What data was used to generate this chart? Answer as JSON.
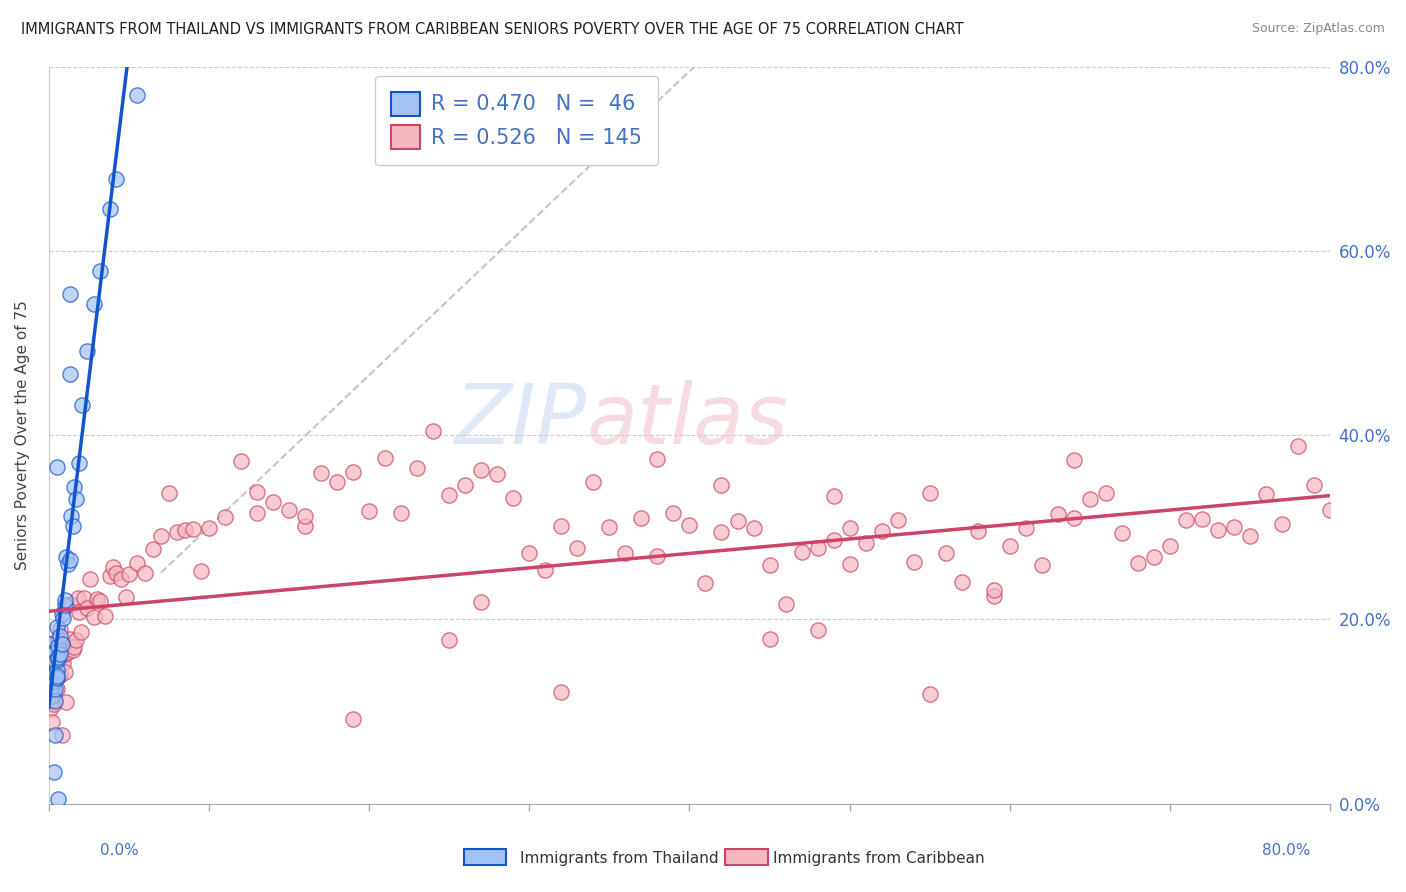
{
  "title": "IMMIGRANTS FROM THAILAND VS IMMIGRANTS FROM CARIBBEAN SENIORS POVERTY OVER THE AGE OF 75 CORRELATION CHART",
  "source": "Source: ZipAtlas.com",
  "ylabel": "Seniors Poverty Over the Age of 75",
  "xlabel_thailand": "Immigrants from Thailand",
  "xlabel_caribbean": "Immigrants from Caribbean",
  "legend_thailand_R": "0.470",
  "legend_thailand_N": "46",
  "legend_caribbean_R": "0.526",
  "legend_caribbean_N": "145",
  "color_thailand": "#a4c2f4",
  "color_caribbean": "#f4b8c1",
  "color_regression_thailand": "#1155cc",
  "color_regression_caribbean": "#cc4466",
  "color_ref_line": "#bbbbbb",
  "xlim": [
    0.0,
    0.8
  ],
  "ylim": [
    0.0,
    0.8
  ],
  "yticks_right": [
    0.0,
    0.2,
    0.4,
    0.6,
    0.8
  ],
  "background_color": "#ffffff",
  "watermark_zip": "ZIP",
  "watermark_atlas": "atlas",
  "thai_x": [
    0.001,
    0.001,
    0.001,
    0.001,
    0.002,
    0.002,
    0.002,
    0.002,
    0.002,
    0.003,
    0.003,
    0.003,
    0.003,
    0.004,
    0.004,
    0.004,
    0.004,
    0.005,
    0.005,
    0.005,
    0.005,
    0.006,
    0.006,
    0.006,
    0.007,
    0.007,
    0.008,
    0.008,
    0.009,
    0.01,
    0.01,
    0.011,
    0.012,
    0.013,
    0.014,
    0.015,
    0.016,
    0.017,
    0.019,
    0.021,
    0.024,
    0.028,
    0.032,
    0.038,
    0.042,
    0.055
  ],
  "thai_y": [
    0.12,
    0.13,
    0.14,
    0.15,
    0.12,
    0.13,
    0.14,
    0.15,
    0.16,
    0.13,
    0.14,
    0.15,
    0.16,
    0.14,
    0.15,
    0.16,
    0.17,
    0.14,
    0.15,
    0.16,
    0.17,
    0.16,
    0.17,
    0.18,
    0.17,
    0.18,
    0.19,
    0.2,
    0.21,
    0.22,
    0.23,
    0.24,
    0.26,
    0.28,
    0.3,
    0.32,
    0.34,
    0.36,
    0.39,
    0.43,
    0.48,
    0.54,
    0.58,
    0.65,
    0.7,
    0.78
  ],
  "thai_outliers_x": [
    0.013,
    0.013,
    0.005,
    0.006,
    0.004,
    0.003
  ],
  "thai_outliers_y": [
    0.56,
    0.45,
    0.36,
    0.02,
    0.07,
    0.04
  ],
  "carib_x": [
    0.001,
    0.001,
    0.001,
    0.001,
    0.002,
    0.002,
    0.002,
    0.002,
    0.003,
    0.003,
    0.003,
    0.003,
    0.004,
    0.004,
    0.004,
    0.005,
    0.005,
    0.005,
    0.006,
    0.006,
    0.007,
    0.007,
    0.008,
    0.008,
    0.009,
    0.01,
    0.01,
    0.011,
    0.012,
    0.013,
    0.014,
    0.015,
    0.016,
    0.017,
    0.018,
    0.019,
    0.02,
    0.022,
    0.024,
    0.026,
    0.028,
    0.03,
    0.032,
    0.035,
    0.038,
    0.04,
    0.042,
    0.045,
    0.048,
    0.05,
    0.055,
    0.06,
    0.065,
    0.07,
    0.075,
    0.08,
    0.085,
    0.09,
    0.095,
    0.1,
    0.11,
    0.12,
    0.13,
    0.14,
    0.15,
    0.16,
    0.17,
    0.18,
    0.19,
    0.2,
    0.21,
    0.22,
    0.23,
    0.24,
    0.25,
    0.26,
    0.27,
    0.28,
    0.29,
    0.3,
    0.31,
    0.32,
    0.33,
    0.34,
    0.35,
    0.36,
    0.37,
    0.38,
    0.39,
    0.4,
    0.41,
    0.42,
    0.43,
    0.44,
    0.45,
    0.46,
    0.47,
    0.48,
    0.49,
    0.5,
    0.51,
    0.52,
    0.53,
    0.54,
    0.55,
    0.56,
    0.57,
    0.58,
    0.59,
    0.6,
    0.61,
    0.62,
    0.63,
    0.64,
    0.65,
    0.66,
    0.67,
    0.68,
    0.69,
    0.7,
    0.71,
    0.72,
    0.73,
    0.74,
    0.75,
    0.76,
    0.77,
    0.78,
    0.79,
    0.8,
    0.64,
    0.59,
    0.38,
    0.25,
    0.19,
    0.45,
    0.55,
    0.16,
    0.48,
    0.32,
    0.42,
    0.27,
    0.49,
    0.5,
    0.13
  ],
  "carib_y": [
    0.12,
    0.13,
    0.14,
    0.15,
    0.11,
    0.12,
    0.13,
    0.14,
    0.12,
    0.13,
    0.14,
    0.15,
    0.12,
    0.13,
    0.14,
    0.12,
    0.13,
    0.14,
    0.13,
    0.14,
    0.14,
    0.15,
    0.14,
    0.15,
    0.15,
    0.15,
    0.16,
    0.16,
    0.17,
    0.17,
    0.18,
    0.18,
    0.19,
    0.19,
    0.2,
    0.2,
    0.2,
    0.21,
    0.21,
    0.22,
    0.22,
    0.23,
    0.23,
    0.24,
    0.24,
    0.25,
    0.25,
    0.25,
    0.26,
    0.26,
    0.27,
    0.27,
    0.28,
    0.28,
    0.29,
    0.29,
    0.29,
    0.3,
    0.3,
    0.3,
    0.31,
    0.31,
    0.32,
    0.32,
    0.32,
    0.33,
    0.33,
    0.33,
    0.34,
    0.34,
    0.34,
    0.35,
    0.35,
    0.35,
    0.36,
    0.36,
    0.36,
    0.37,
    0.37,
    0.27,
    0.28,
    0.29,
    0.3,
    0.31,
    0.32,
    0.28,
    0.29,
    0.3,
    0.31,
    0.27,
    0.28,
    0.29,
    0.3,
    0.28,
    0.29,
    0.25,
    0.26,
    0.27,
    0.28,
    0.29,
    0.3,
    0.29,
    0.3,
    0.28,
    0.29,
    0.26,
    0.27,
    0.28,
    0.25,
    0.26,
    0.27,
    0.28,
    0.29,
    0.3,
    0.31,
    0.29,
    0.3,
    0.28,
    0.29,
    0.3,
    0.31,
    0.3,
    0.29,
    0.28,
    0.29,
    0.3,
    0.31,
    0.32,
    0.33,
    0.34,
    0.4,
    0.22,
    0.38,
    0.16,
    0.08,
    0.18,
    0.14,
    0.35,
    0.2,
    0.1,
    0.34,
    0.25,
    0.33,
    0.25,
    0.36
  ]
}
